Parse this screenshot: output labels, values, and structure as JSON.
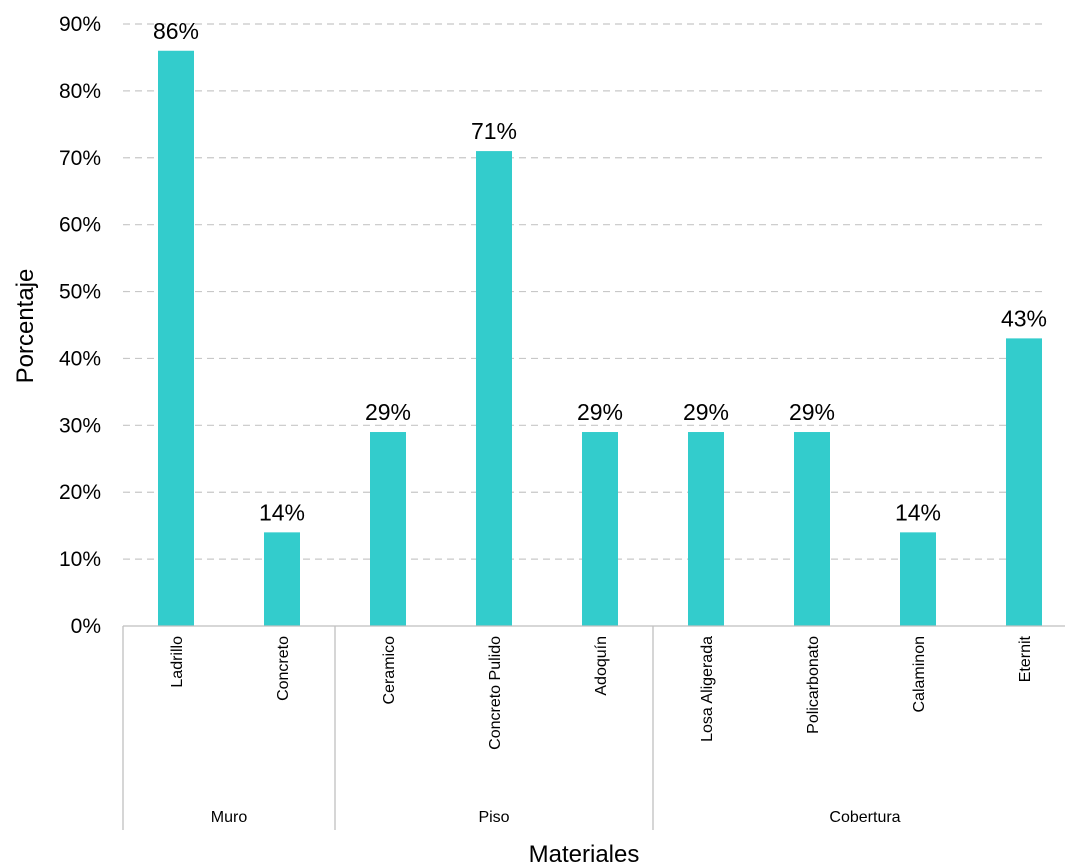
{
  "chart_data": {
    "type": "bar",
    "xlabel": "Materiales",
    "ylabel": "Porcentaje",
    "ylim": [
      0,
      90
    ],
    "yticks": [
      "0%",
      "10%",
      "20%",
      "30%",
      "40%",
      "50%",
      "60%",
      "70%",
      "80%",
      "90%"
    ],
    "grid": "horizontal-dashed",
    "bar_color": "#33CCCC",
    "categories": [
      "Ladrillo",
      "Concreto",
      "Ceramico",
      "Concreto Pulido",
      "Adoquín",
      "Losa Aligerada",
      "Policarbonato",
      "Calaminon",
      "Eternit"
    ],
    "values": [
      86,
      14,
      29,
      71,
      29,
      29,
      29,
      14,
      43
    ],
    "data_labels": [
      "86%",
      "14%",
      "29%",
      "71%",
      "29%",
      "29%",
      "29%",
      "14%",
      "43%"
    ],
    "groups": [
      {
        "label": "Muro",
        "count": 2
      },
      {
        "label": "Piso",
        "count": 3
      },
      {
        "label": "Cobertura",
        "count": 4
      }
    ]
  }
}
